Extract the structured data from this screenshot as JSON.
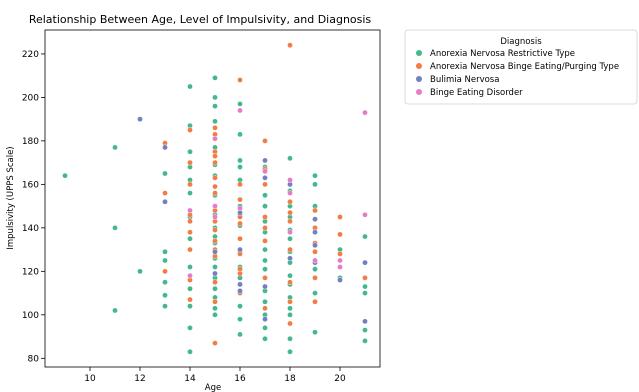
{
  "chart_data": {
    "type": "scatter",
    "title": "Relationship Between Age, Level of Impulsivity, and Diagnosis",
    "xlabel": "Age",
    "ylabel": "Impulsivity (UPPS Scale)",
    "xlim": [
      8.2,
      21.6
    ],
    "ylim": [
      76,
      231
    ],
    "xticks": [
      10,
      12,
      14,
      16,
      18,
      20
    ],
    "yticks": [
      80,
      100,
      120,
      140,
      160,
      180,
      200,
      220
    ],
    "grid": false,
    "legend": {
      "title": "Diagnosis",
      "placement": "outside-top-right"
    },
    "series": [
      {
        "name": "Anorexia Nervosa Restrictive Type",
        "color": "#43b88c",
        "points": [
          [
            9,
            164
          ],
          [
            11,
            177
          ],
          [
            11,
            140
          ],
          [
            11,
            102
          ],
          [
            12,
            120
          ],
          [
            13,
            165
          ],
          [
            13,
            129
          ],
          [
            13,
            125
          ],
          [
            13,
            115
          ],
          [
            13,
            109
          ],
          [
            13,
            104
          ],
          [
            14,
            205
          ],
          [
            14,
            187
          ],
          [
            14,
            175
          ],
          [
            14,
            168
          ],
          [
            14,
            162
          ],
          [
            14,
            156
          ],
          [
            14,
            145
          ],
          [
            14,
            135
          ],
          [
            14,
            122
          ],
          [
            14,
            112
          ],
          [
            14,
            104
          ],
          [
            14,
            94
          ],
          [
            14,
            83
          ],
          [
            15,
            209
          ],
          [
            15,
            200
          ],
          [
            15,
            196
          ],
          [
            15,
            189
          ],
          [
            15,
            177
          ],
          [
            15,
            169
          ],
          [
            15,
            164
          ],
          [
            15,
            155
          ],
          [
            15,
            146
          ],
          [
            15,
            140
          ],
          [
            15,
            136
          ],
          [
            15,
            133
          ],
          [
            15,
            129
          ],
          [
            15,
            126
          ],
          [
            15,
            122
          ],
          [
            15,
            117
          ],
          [
            15,
            112
          ],
          [
            15,
            108
          ],
          [
            15,
            103
          ],
          [
            15,
            100
          ],
          [
            16,
            197
          ],
          [
            16,
            183
          ],
          [
            16,
            171
          ],
          [
            16,
            168
          ],
          [
            16,
            162
          ],
          [
            16,
            150
          ],
          [
            16,
            146
          ],
          [
            16,
            141
          ],
          [
            16,
            135
          ],
          [
            16,
            129
          ],
          [
            16,
            122
          ],
          [
            16,
            117
          ],
          [
            16,
            110
          ],
          [
            16,
            104
          ],
          [
            16,
            98
          ],
          [
            16,
            91
          ],
          [
            17,
            168
          ],
          [
            17,
            155
          ],
          [
            17,
            150
          ],
          [
            17,
            143
          ],
          [
            17,
            138
          ],
          [
            17,
            130
          ],
          [
            17,
            125
          ],
          [
            17,
            121
          ],
          [
            17,
            111
          ],
          [
            17,
            106
          ],
          [
            17,
            100
          ],
          [
            17,
            94
          ],
          [
            17,
            89
          ],
          [
            18,
            172
          ],
          [
            18,
            157
          ],
          [
            18,
            150
          ],
          [
            18,
            145
          ],
          [
            18,
            139
          ],
          [
            18,
            135
          ],
          [
            18,
            129
          ],
          [
            18,
            124
          ],
          [
            18,
            118
          ],
          [
            18,
            114
          ],
          [
            18,
            108
          ],
          [
            18,
            103
          ],
          [
            18,
            100
          ],
          [
            18,
            89
          ],
          [
            18,
            83
          ],
          [
            19,
            164
          ],
          [
            19,
            160
          ],
          [
            19,
            150
          ],
          [
            19,
            140
          ],
          [
            19,
            132
          ],
          [
            19,
            125
          ],
          [
            19,
            121
          ],
          [
            19,
            110
          ],
          [
            19,
            92
          ],
          [
            20,
            130
          ],
          [
            20,
            117
          ],
          [
            21,
            136
          ],
          [
            21,
            113
          ],
          [
            21,
            110
          ],
          [
            21,
            93
          ],
          [
            21,
            88
          ]
        ]
      },
      {
        "name": "Anorexia Nervosa Binge Eating/Purging Type",
        "color": "#f27c45",
        "points": [
          [
            13,
            179
          ],
          [
            13,
            156
          ],
          [
            13,
            120
          ],
          [
            14,
            185
          ],
          [
            14,
            170
          ],
          [
            14,
            160
          ],
          [
            14,
            146
          ],
          [
            14,
            143
          ],
          [
            14,
            138
          ],
          [
            14,
            130
          ],
          [
            14,
            116
          ],
          [
            14,
            107
          ],
          [
            15,
            186
          ],
          [
            15,
            183
          ],
          [
            15,
            175
          ],
          [
            15,
            173
          ],
          [
            15,
            170
          ],
          [
            15,
            163
          ],
          [
            15,
            159
          ],
          [
            15,
            156
          ],
          [
            15,
            150
          ],
          [
            15,
            148
          ],
          [
            15,
            143
          ],
          [
            15,
            139
          ],
          [
            15,
            134
          ],
          [
            15,
            130
          ],
          [
            15,
            127
          ],
          [
            15,
            119
          ],
          [
            15,
            115
          ],
          [
            15,
            106
          ],
          [
            15,
            87
          ],
          [
            16,
            208
          ],
          [
            16,
            160
          ],
          [
            16,
            153
          ],
          [
            16,
            145
          ],
          [
            16,
            142
          ],
          [
            16,
            135
          ],
          [
            16,
            128
          ],
          [
            16,
            121
          ],
          [
            16,
            119
          ],
          [
            16,
            110
          ],
          [
            17,
            180
          ],
          [
            17,
            167
          ],
          [
            17,
            160
          ],
          [
            17,
            145
          ],
          [
            17,
            140
          ],
          [
            17,
            134
          ],
          [
            17,
            117
          ],
          [
            17,
            103
          ],
          [
            18,
            224
          ],
          [
            18,
            160
          ],
          [
            18,
            152
          ],
          [
            18,
            147
          ],
          [
            18,
            143
          ],
          [
            18,
            130
          ],
          [
            18,
            115
          ],
          [
            18,
            106
          ],
          [
            18,
            96
          ],
          [
            19,
            148
          ],
          [
            19,
            140
          ],
          [
            19,
            133
          ],
          [
            19,
            129
          ],
          [
            19,
            117
          ],
          [
            19,
            106
          ],
          [
            20,
            145
          ],
          [
            20,
            137
          ],
          [
            20,
            128
          ],
          [
            20,
            116
          ],
          [
            21,
            117
          ]
        ]
      },
      {
        "name": "Bulimia Nervosa",
        "color": "#7080c0",
        "points": [
          [
            12,
            190
          ],
          [
            13,
            177
          ],
          [
            13,
            152
          ],
          [
            15,
            129
          ],
          [
            15,
            119
          ],
          [
            16,
            147
          ],
          [
            16,
            130
          ],
          [
            16,
            114
          ],
          [
            16,
            111
          ],
          [
            17,
            171
          ],
          [
            17,
            163
          ],
          [
            17,
            113
          ],
          [
            17,
            98
          ],
          [
            18,
            160
          ],
          [
            18,
            126
          ],
          [
            19,
            144
          ],
          [
            19,
            138
          ],
          [
            19,
            132
          ],
          [
            19,
            124
          ],
          [
            20,
            116
          ],
          [
            21,
            124
          ],
          [
            21,
            97
          ]
        ]
      },
      {
        "name": "Binge Eating Disorder",
        "color": "#e57cc8",
        "points": [
          [
            14,
            148
          ],
          [
            14,
            118
          ],
          [
            15,
            181
          ],
          [
            15,
            150
          ],
          [
            15,
            145
          ],
          [
            16,
            194
          ],
          [
            16,
            149
          ],
          [
            17,
            166
          ],
          [
            18,
            162
          ],
          [
            18,
            156
          ],
          [
            18,
            138
          ],
          [
            19,
            125
          ],
          [
            20,
            125
          ],
          [
            20,
            122
          ],
          [
            21,
            193
          ],
          [
            21,
            146
          ]
        ]
      }
    ]
  }
}
